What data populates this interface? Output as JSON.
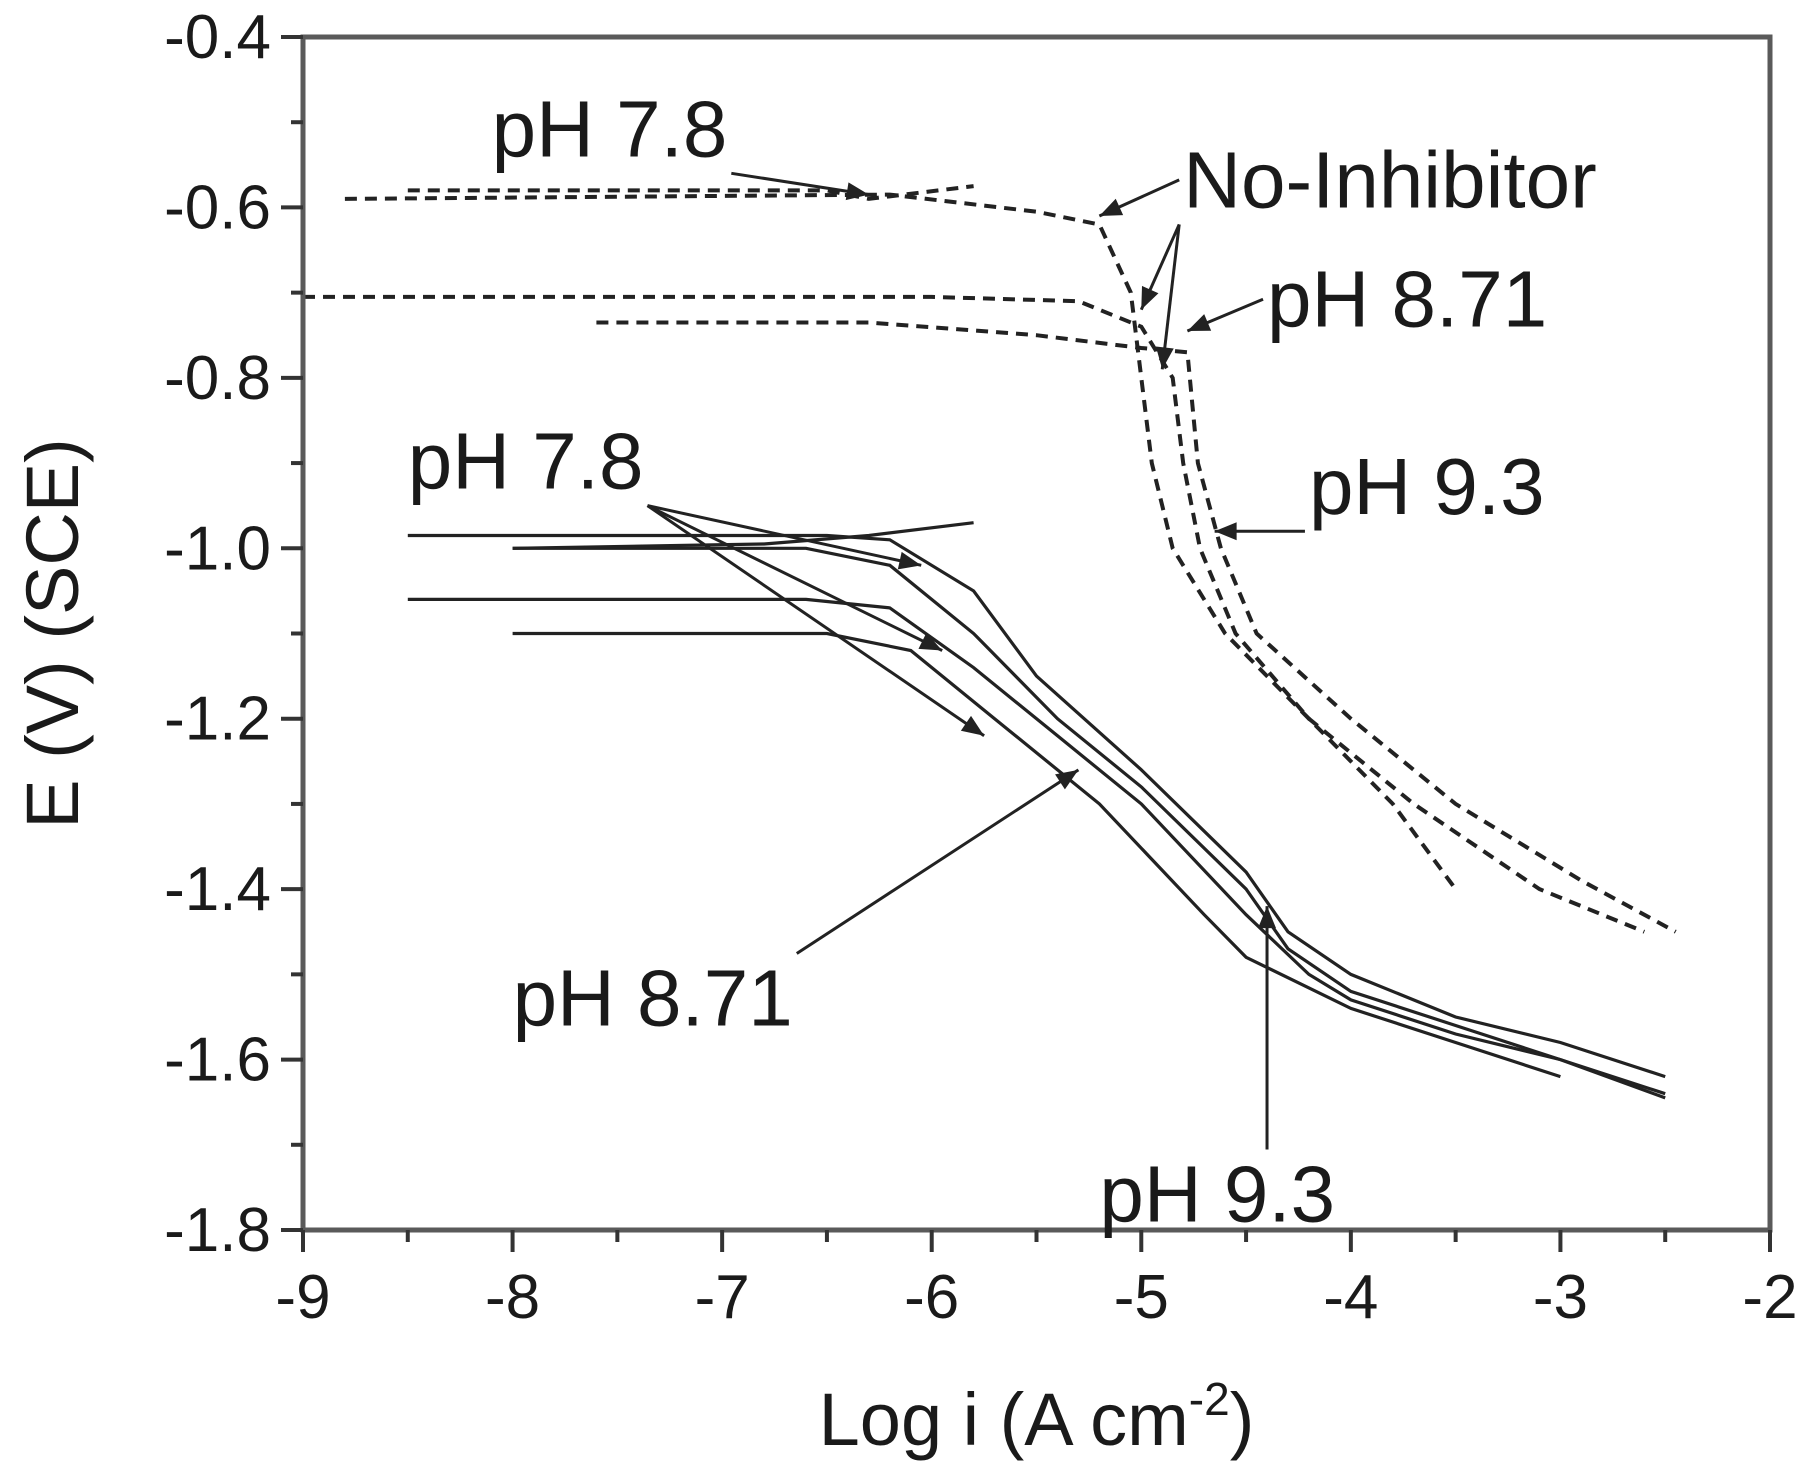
{
  "chart_data": {
    "type": "line",
    "xlabel": "Log i (A cm",
    "xlabel_sup": "-2",
    "xlabel_end": ")",
    "ylabel": "E (V) (SCE)",
    "xlim": [
      -9,
      -2
    ],
    "ylim": [
      -1.8,
      -0.4
    ],
    "x_ticks": [
      -9,
      -8,
      -7,
      -6,
      -5,
      -4,
      -3,
      -2
    ],
    "x_tick_labels": [
      "-9",
      "-8",
      "-7",
      "-6",
      "-5",
      "-4",
      "-3",
      "-2"
    ],
    "y_ticks": [
      -1.8,
      -1.6,
      -1.4,
      -1.2,
      -1.0,
      -0.8,
      -0.6,
      -0.4
    ],
    "y_tick_labels": [
      "-1.8",
      "-1.6",
      "-1.4",
      "-1.2",
      "-1.0",
      "-0.8",
      "-0.6",
      "-0.4"
    ],
    "grid": false,
    "series": [
      {
        "style": "dashed",
        "points": [
          [
            -8.8,
            -0.59
          ],
          [
            -6.2,
            -0.585
          ],
          [
            -5.5,
            -0.605
          ],
          [
            -5.2,
            -0.62
          ],
          [
            -5.05,
            -0.7
          ],
          [
            -5.0,
            -0.8
          ],
          [
            -4.95,
            -0.9
          ],
          [
            -4.85,
            -1.0
          ],
          [
            -4.6,
            -1.1
          ],
          [
            -4.2,
            -1.2
          ],
          [
            -3.8,
            -1.3
          ],
          [
            -3.5,
            -1.4
          ]
        ]
      },
      {
        "style": "dashed",
        "points": [
          [
            -8.5,
            -0.58
          ],
          [
            -6.5,
            -0.58
          ],
          [
            -6.3,
            -0.59
          ],
          [
            -5.8,
            -0.575
          ]
        ]
      },
      {
        "style": "dashed",
        "points": [
          [
            -9.0,
            -0.705
          ],
          [
            -6.0,
            -0.705
          ],
          [
            -5.3,
            -0.71
          ],
          [
            -5.0,
            -0.74
          ],
          [
            -4.85,
            -0.8
          ],
          [
            -4.8,
            -0.9
          ],
          [
            -4.72,
            -1.0
          ],
          [
            -4.55,
            -1.1
          ],
          [
            -4.2,
            -1.2
          ],
          [
            -3.7,
            -1.3
          ],
          [
            -3.1,
            -1.4
          ],
          [
            -2.6,
            -1.45
          ]
        ]
      },
      {
        "style": "dashed",
        "points": [
          [
            -7.6,
            -0.735
          ],
          [
            -6.3,
            -0.735
          ],
          [
            -5.5,
            -0.75
          ],
          [
            -5.0,
            -0.765
          ],
          [
            -4.78,
            -0.77
          ],
          [
            -4.73,
            -0.9
          ],
          [
            -4.62,
            -1.0
          ],
          [
            -4.45,
            -1.1
          ],
          [
            -4.0,
            -1.2
          ],
          [
            -3.5,
            -1.3
          ],
          [
            -2.9,
            -1.39
          ],
          [
            -2.45,
            -1.45
          ]
        ]
      },
      {
        "style": "solid",
        "points": [
          [
            -8.5,
            -0.985
          ],
          [
            -6.5,
            -0.985
          ],
          [
            -6.2,
            -0.99
          ],
          [
            -5.8,
            -1.05
          ],
          [
            -5.5,
            -1.15
          ],
          [
            -5.0,
            -1.26
          ],
          [
            -4.5,
            -1.38
          ],
          [
            -4.3,
            -1.45
          ],
          [
            -4.0,
            -1.5
          ],
          [
            -3.5,
            -1.55
          ],
          [
            -3.0,
            -1.58
          ],
          [
            -2.5,
            -1.62
          ]
        ]
      },
      {
        "style": "solid",
        "points": [
          [
            -8.0,
            -1.0
          ],
          [
            -6.6,
            -1.0
          ],
          [
            -6.2,
            -1.02
          ],
          [
            -5.8,
            -1.1
          ],
          [
            -5.4,
            -1.2
          ],
          [
            -5.0,
            -1.28
          ],
          [
            -4.5,
            -1.4
          ],
          [
            -4.3,
            -1.47
          ],
          [
            -4.0,
            -1.52
          ],
          [
            -3.5,
            -1.56
          ],
          [
            -3.0,
            -1.6
          ],
          [
            -2.5,
            -1.64
          ]
        ]
      },
      {
        "style": "solid",
        "points": [
          [
            -8.5,
            -1.06
          ],
          [
            -6.6,
            -1.06
          ],
          [
            -6.2,
            -1.07
          ],
          [
            -5.8,
            -1.14
          ],
          [
            -5.4,
            -1.22
          ],
          [
            -5.0,
            -1.3
          ],
          [
            -4.5,
            -1.43
          ],
          [
            -4.2,
            -1.5
          ],
          [
            -4.0,
            -1.53
          ],
          [
            -3.5,
            -1.57
          ],
          [
            -3.0,
            -1.6
          ],
          [
            -2.5,
            -1.645
          ]
        ]
      },
      {
        "style": "solid",
        "points": [
          [
            -8.0,
            -1.1
          ],
          [
            -6.5,
            -1.1
          ],
          [
            -6.1,
            -1.12
          ],
          [
            -5.7,
            -1.2
          ],
          [
            -5.2,
            -1.3
          ],
          [
            -4.7,
            -1.43
          ],
          [
            -4.5,
            -1.48
          ],
          [
            -4.0,
            -1.54
          ],
          [
            -3.5,
            -1.58
          ],
          [
            -3.0,
            -1.62
          ]
        ]
      },
      {
        "style": "solid",
        "points": [
          [
            -8.0,
            -1.0
          ],
          [
            -6.8,
            -0.995
          ],
          [
            -6.3,
            -0.985
          ],
          [
            -5.8,
            -0.97
          ]
        ]
      }
    ],
    "annotations": [
      {
        "text": "pH 7.8",
        "x": -8.1,
        "y": -0.54,
        "pointers": [
          [
            -6.3,
            -0.585
          ]
        ]
      },
      {
        "text": "No-Inhibitor",
        "x": -4.8,
        "y": -0.6,
        "pointers": [
          [
            -5.2,
            -0.61
          ],
          [
            -5.0,
            -0.72
          ],
          [
            -4.9,
            -0.79
          ]
        ]
      },
      {
        "text": "pH 8.71",
        "x": -4.4,
        "y": -0.74,
        "pointers": [
          [
            -4.78,
            -0.745
          ]
        ]
      },
      {
        "text": "pH 9.3",
        "x": -4.2,
        "y": -0.96,
        "pointers": [
          [
            -4.65,
            -0.98
          ]
        ]
      },
      {
        "text": "pH 7.8",
        "x": -8.5,
        "y": -0.93,
        "pointers": [
          [
            -6.05,
            -1.02
          ],
          [
            -5.95,
            -1.12
          ],
          [
            -5.75,
            -1.22
          ]
        ]
      },
      {
        "text": "pH 8.71",
        "x": -8.0,
        "y": -1.56,
        "pointers": [
          [
            -5.3,
            -1.26
          ]
        ]
      },
      {
        "text": "pH 9.3",
        "x": -5.2,
        "y": -1.79,
        "pointers": [
          [
            -4.4,
            -1.42
          ]
        ]
      }
    ]
  }
}
